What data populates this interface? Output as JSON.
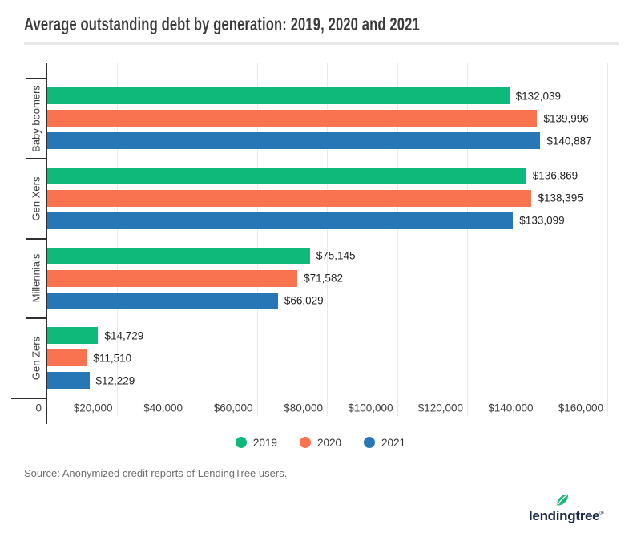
{
  "title": "Average outstanding debt by generation: 2019, 2020 and 2021",
  "source_note": "Source: Anonymized credit reports of LendingTree users.",
  "logo": {
    "text": "lendingtree",
    "registered_mark": "®",
    "text_color": "#1B2B49",
    "leaf_color": "#1FB877"
  },
  "chart_data": {
    "type": "bar",
    "orientation": "horizontal",
    "title": "Average outstanding debt by generation: 2019, 2020 and 2021",
    "categories": [
      "Baby boomers",
      "Gen Xers",
      "Millennials",
      "Gen Zers"
    ],
    "series": [
      {
        "name": "2019",
        "color": "#0FB97A",
        "values": [
          132039,
          136869,
          75145,
          14729
        ],
        "labels": [
          "$132,039",
          "$136,869",
          "$75,145",
          "$14,729"
        ]
      },
      {
        "name": "2020",
        "color": "#FA7351",
        "values": [
          139996,
          138395,
          71582,
          11510
        ],
        "labels": [
          "$139,996",
          "$138,395",
          "$71,582",
          "$11,510"
        ]
      },
      {
        "name": "2021",
        "color": "#2777B7",
        "values": [
          140887,
          133099,
          66029,
          12229
        ],
        "labels": [
          "$140,887",
          "$133,099",
          "$66,029",
          "$12,229"
        ]
      }
    ],
    "x_axis": {
      "min": 0,
      "max": 160000,
      "tick_interval": 20000,
      "tick_labels": [
        "0",
        "$20,000",
        "$40,000",
        "$60,000",
        "$80,000",
        "$100,000",
        "$120,000",
        "$140,000",
        "$160,000"
      ]
    },
    "grid": "vertical",
    "legend_position": "bottom-center",
    "colors": {
      "grid": "#E9E9E9",
      "axis": "#2F2F2F",
      "value_label": "#242424",
      "tick_label": "#3F3F3F"
    }
  }
}
